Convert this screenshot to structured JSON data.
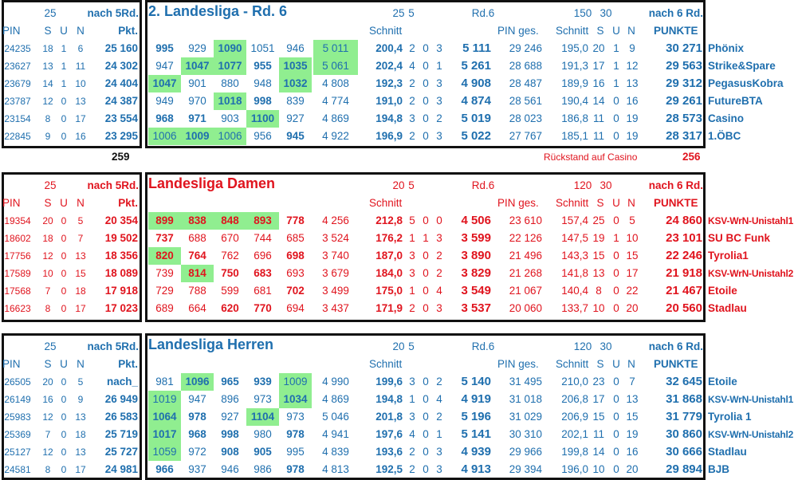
{
  "colors": {
    "blue": "#1f6fae",
    "red": "#e0141e",
    "highlight": "#90ee90",
    "border": "#111111"
  },
  "sections": [
    {
      "id": "landesliga2",
      "color": "blue",
      "title": "2. Landesliga - Rd. 6",
      "left_header": {
        "line1": [
          "25",
          "nach 5Rd."
        ],
        "cols": [
          "PIN",
          "S",
          "U",
          "N",
          "Pkt."
        ]
      },
      "main_header": {
        "line1": [
          "25",
          "5",
          "Rd.6",
          "150",
          "30",
          "nach 6 Rd."
        ],
        "line2": [
          "Schnitt",
          "PIN ges.",
          "Schnitt",
          "S",
          "U",
          "N",
          "PUNKTE"
        ]
      },
      "rows": [
        {
          "left": [
            "24235",
            "18",
            "1",
            "6",
            "25 160"
          ],
          "games": [
            "995",
            "929",
            "1090",
            "1051",
            "946"
          ],
          "bold": [
            true,
            false,
            true,
            false,
            false
          ],
          "hl": [
            false,
            false,
            true,
            false,
            false
          ],
          "sum": "5 011",
          "sum_hl": true,
          "avg": "200,4",
          "suv": [
            "2",
            "0",
            "3"
          ],
          "rd6": "5 111",
          "pin_ges": "29 246",
          "avg_ges": "195,0",
          "suv_ges": [
            "20",
            "1",
            "9"
          ],
          "punkte": "30 271",
          "team": "Phönix"
        },
        {
          "left": [
            "23627",
            "13",
            "1",
            "11",
            "24 302"
          ],
          "games": [
            "947",
            "1047",
            "1077",
            "955",
            "1035"
          ],
          "bold": [
            false,
            true,
            true,
            true,
            true
          ],
          "hl": [
            false,
            true,
            true,
            false,
            true
          ],
          "sum": "5 061",
          "sum_hl": true,
          "avg": "202,4",
          "suv": [
            "4",
            "0",
            "1"
          ],
          "rd6": "5 261",
          "pin_ges": "28 688",
          "avg_ges": "191,3",
          "suv_ges": [
            "17",
            "1",
            "12"
          ],
          "punkte": "29 563",
          "team": "Strike&Spare"
        },
        {
          "left": [
            "23679",
            "14",
            "1",
            "10",
            "24 404"
          ],
          "games": [
            "1047",
            "901",
            "880",
            "948",
            "1032"
          ],
          "bold": [
            true,
            false,
            false,
            false,
            true
          ],
          "hl": [
            true,
            false,
            false,
            false,
            true
          ],
          "sum": "4 808",
          "sum_hl": false,
          "avg": "192,3",
          "suv": [
            "2",
            "0",
            "3"
          ],
          "rd6": "4 908",
          "pin_ges": "28 487",
          "avg_ges": "189,9",
          "suv_ges": [
            "16",
            "1",
            "13"
          ],
          "punkte": "29 312",
          "team": "PegasusKobra"
        },
        {
          "left": [
            "23787",
            "12",
            "0",
            "13",
            "24 387"
          ],
          "games": [
            "949",
            "970",
            "1018",
            "998",
            "839"
          ],
          "bold": [
            false,
            false,
            true,
            true,
            false
          ],
          "hl": [
            false,
            false,
            true,
            false,
            false
          ],
          "sum": "4 774",
          "sum_hl": false,
          "avg": "191,0",
          "suv": [
            "2",
            "0",
            "3"
          ],
          "rd6": "4 874",
          "pin_ges": "28 561",
          "avg_ges": "190,4",
          "suv_ges": [
            "14",
            "0",
            "16"
          ],
          "punkte": "29 261",
          "team": "FutureBTA"
        },
        {
          "left": [
            "23154",
            "8",
            "0",
            "17",
            "23 554"
          ],
          "games": [
            "968",
            "971",
            "903",
            "1100",
            "927"
          ],
          "bold": [
            true,
            true,
            false,
            true,
            false
          ],
          "hl": [
            false,
            false,
            false,
            true,
            false
          ],
          "sum": "4 869",
          "sum_hl": false,
          "avg": "194,8",
          "suv": [
            "3",
            "0",
            "2"
          ],
          "rd6": "5 019",
          "pin_ges": "28 023",
          "avg_ges": "186,8",
          "suv_ges": [
            "11",
            "0",
            "19"
          ],
          "punkte": "28 573",
          "team": "Casino"
        },
        {
          "left": [
            "22845",
            "9",
            "0",
            "16",
            "23 295"
          ],
          "games": [
            "1006",
            "1009",
            "1006",
            "956",
            "945"
          ],
          "bold": [
            false,
            true,
            false,
            false,
            true
          ],
          "hl": [
            true,
            true,
            true,
            false,
            false
          ],
          "sum": "4 922",
          "sum_hl": false,
          "avg": "196,9",
          "suv": [
            "2",
            "0",
            "3"
          ],
          "rd6": "5 022",
          "pin_ges": "27 767",
          "avg_ges": "185,1",
          "suv_ges": [
            "11",
            "0",
            "19"
          ],
          "punkte": "28 317",
          "team": "1.ÖBC"
        }
      ],
      "footer_left": "259",
      "footer_note": "Rückstand auf Casino",
      "footer_value": "256"
    },
    {
      "id": "damen",
      "color": "red",
      "title": "Landesliga Damen",
      "left_header": {
        "line1": [
          "25",
          "nach 5Rd."
        ],
        "cols": [
          "PIN",
          "S",
          "U",
          "N",
          "Pkt."
        ]
      },
      "main_header": {
        "line1": [
          "20",
          "5",
          "Rd.6",
          "120",
          "30",
          "nach 6 Rd."
        ],
        "line2": [
          "Schnitt",
          "PIN ges.",
          "Schnitt",
          "S",
          "U",
          "N",
          "PUNKTE"
        ]
      },
      "rows": [
        {
          "left": [
            "19354",
            "20",
            "0",
            "5",
            "20 354"
          ],
          "games": [
            "899",
            "838",
            "848",
            "893",
            "778"
          ],
          "bold": [
            true,
            true,
            true,
            true,
            true
          ],
          "hl": [
            true,
            true,
            true,
            true,
            false
          ],
          "sum": "4 256",
          "sum_hl": false,
          "avg": "212,8",
          "suv": [
            "5",
            "0",
            "0"
          ],
          "rd6": "4 506",
          "pin_ges": "23 610",
          "avg_ges": "157,4",
          "suv_ges": [
            "25",
            "0",
            "5"
          ],
          "punkte": "24 860",
          "team": "KSV-WrN-Unistahl1"
        },
        {
          "left": [
            "18602",
            "18",
            "0",
            "7",
            "19 502"
          ],
          "games": [
            "737",
            "688",
            "670",
            "744",
            "685"
          ],
          "bold": [
            true,
            false,
            false,
            false,
            false
          ],
          "hl": [
            false,
            false,
            false,
            false,
            false
          ],
          "sum": "3 524",
          "sum_hl": false,
          "avg": "176,2",
          "suv": [
            "1",
            "1",
            "3"
          ],
          "rd6": "3 599",
          "pin_ges": "22 126",
          "avg_ges": "147,5",
          "suv_ges": [
            "19",
            "1",
            "10"
          ],
          "punkte": "23 101",
          "team": "SU BC Funk"
        },
        {
          "left": [
            "17756",
            "12",
            "0",
            "13",
            "18 356"
          ],
          "games": [
            "820",
            "764",
            "762",
            "696",
            "698"
          ],
          "bold": [
            true,
            true,
            false,
            false,
            true
          ],
          "hl": [
            true,
            false,
            false,
            false,
            false
          ],
          "sum": "3 740",
          "sum_hl": false,
          "avg": "187,0",
          "suv": [
            "3",
            "0",
            "2"
          ],
          "rd6": "3 890",
          "pin_ges": "21 496",
          "avg_ges": "143,3",
          "suv_ges": [
            "15",
            "0",
            "15"
          ],
          "punkte": "22 246",
          "team": "Tyrolia1"
        },
        {
          "left": [
            "17589",
            "10",
            "0",
            "15",
            "18 089"
          ],
          "games": [
            "739",
            "814",
            "750",
            "683",
            "693"
          ],
          "bold": [
            false,
            true,
            true,
            true,
            false
          ],
          "hl": [
            false,
            true,
            false,
            false,
            false
          ],
          "sum": "3 679",
          "sum_hl": false,
          "avg": "184,0",
          "suv": [
            "3",
            "0",
            "2"
          ],
          "rd6": "3 829",
          "pin_ges": "21 268",
          "avg_ges": "141,8",
          "suv_ges": [
            "13",
            "0",
            "17"
          ],
          "punkte": "21 918",
          "team": "KSV-WrN-Unistahl2"
        },
        {
          "left": [
            "17568",
            "7",
            "0",
            "18",
            "17 918"
          ],
          "games": [
            "729",
            "788",
            "599",
            "681",
            "702"
          ],
          "bold": [
            false,
            false,
            false,
            false,
            true
          ],
          "hl": [
            false,
            false,
            false,
            false,
            false
          ],
          "sum": "3 499",
          "sum_hl": false,
          "avg": "175,0",
          "suv": [
            "1",
            "0",
            "4"
          ],
          "rd6": "3 549",
          "pin_ges": "21 067",
          "avg_ges": "140,4",
          "suv_ges": [
            "8",
            "0",
            "22"
          ],
          "punkte": "21 467",
          "team": "Etoile"
        },
        {
          "left": [
            "16623",
            "8",
            "0",
            "17",
            "17 023"
          ],
          "games": [
            "689",
            "664",
            "620",
            "770",
            "694"
          ],
          "bold": [
            false,
            false,
            true,
            true,
            false
          ],
          "hl": [
            false,
            false,
            false,
            false,
            false
          ],
          "sum": "3 437",
          "sum_hl": false,
          "avg": "171,9",
          "suv": [
            "2",
            "0",
            "3"
          ],
          "rd6": "3 537",
          "pin_ges": "20 060",
          "avg_ges": "133,7",
          "suv_ges": [
            "10",
            "0",
            "20"
          ],
          "punkte": "20 560",
          "team": "Stadlau"
        }
      ]
    },
    {
      "id": "herren",
      "color": "blue",
      "title": "Landesliga  Herren",
      "left_header": {
        "line1": [
          "25",
          "nach 5Rd."
        ],
        "cols": [
          "PIN",
          "S",
          "U",
          "N",
          "Pkt."
        ]
      },
      "main_header": {
        "line1": [
          "20",
          "5",
          "Rd.6",
          "120",
          "30",
          "nach 6 Rd."
        ],
        "line2": [
          "Schnitt",
          "PIN ges.",
          "Schnitt",
          "S",
          "U",
          "N",
          "PUNKTE"
        ]
      },
      "rows": [
        {
          "left": [
            "26505",
            "20",
            "0",
            "5",
            "nach_"
          ],
          "games": [
            "981",
            "1096",
            "965",
            "939",
            "1009"
          ],
          "bold": [
            false,
            true,
            true,
            true,
            false
          ],
          "hl": [
            false,
            true,
            false,
            false,
            true
          ],
          "sum": "4 990",
          "sum_hl": false,
          "avg": "199,6",
          "suv": [
            "3",
            "0",
            "2"
          ],
          "rd6": "5 140",
          "pin_ges": "31 495",
          "avg_ges": "210,0",
          "suv_ges": [
            "23",
            "0",
            "7"
          ],
          "punkte": "32 645",
          "team": "Etoile"
        },
        {
          "left": [
            "26149",
            "16",
            "0",
            "9",
            "26 949"
          ],
          "games": [
            "1019",
            "947",
            "896",
            "973",
            "1034"
          ],
          "bold": [
            false,
            false,
            false,
            false,
            true
          ],
          "hl": [
            true,
            false,
            false,
            false,
            true
          ],
          "sum": "4 869",
          "sum_hl": false,
          "avg": "194,8",
          "suv": [
            "1",
            "0",
            "4"
          ],
          "rd6": "4 919",
          "pin_ges": "31 018",
          "avg_ges": "206,8",
          "suv_ges": [
            "17",
            "0",
            "13"
          ],
          "punkte": "31 868",
          "team": "KSV-WrN-Unistahl1"
        },
        {
          "left": [
            "25983",
            "12",
            "0",
            "13",
            "26 583"
          ],
          "games": [
            "1064",
            "978",
            "927",
            "1104",
            "973"
          ],
          "bold": [
            true,
            true,
            false,
            true,
            false
          ],
          "hl": [
            true,
            false,
            false,
            true,
            false
          ],
          "sum": "5 046",
          "sum_hl": false,
          "avg": "201,8",
          "suv": [
            "3",
            "0",
            "2"
          ],
          "rd6": "5 196",
          "pin_ges": "31 029",
          "avg_ges": "206,9",
          "suv_ges": [
            "15",
            "0",
            "15"
          ],
          "punkte": "31 779",
          "team": "Tyrolia 1"
        },
        {
          "left": [
            "25369",
            "7",
            "0",
            "18",
            "25 719"
          ],
          "games": [
            "1017",
            "968",
            "998",
            "980",
            "978"
          ],
          "bold": [
            true,
            true,
            true,
            false,
            true
          ],
          "hl": [
            true,
            false,
            false,
            false,
            false
          ],
          "sum": "4 941",
          "sum_hl": false,
          "avg": "197,6",
          "suv": [
            "4",
            "0",
            "1"
          ],
          "rd6": "5 141",
          "pin_ges": "30 310",
          "avg_ges": "202,1",
          "suv_ges": [
            "11",
            "0",
            "19"
          ],
          "punkte": "30 860",
          "team": "KSV-WrN-Unistahl2"
        },
        {
          "left": [
            "25127",
            "12",
            "0",
            "13",
            "25 727"
          ],
          "games": [
            "1059",
            "972",
            "908",
            "905",
            "995"
          ],
          "bold": [
            false,
            false,
            true,
            true,
            false
          ],
          "hl": [
            true,
            false,
            false,
            false,
            false
          ],
          "sum": "4 839",
          "sum_hl": false,
          "avg": "193,6",
          "suv": [
            "2",
            "0",
            "3"
          ],
          "rd6": "4 939",
          "pin_ges": "29 966",
          "avg_ges": "199,8",
          "suv_ges": [
            "14",
            "0",
            "16"
          ],
          "punkte": "30 666",
          "team": "Stadlau"
        },
        {
          "left": [
            "24581",
            "8",
            "0",
            "17",
            "24 981"
          ],
          "games": [
            "966",
            "937",
            "946",
            "986",
            "978"
          ],
          "bold": [
            true,
            false,
            false,
            false,
            true
          ],
          "hl": [
            false,
            false,
            false,
            false,
            false
          ],
          "sum": "4 813",
          "sum_hl": false,
          "avg": "192,5",
          "suv": [
            "2",
            "0",
            "3"
          ],
          "rd6": "4 913",
          "pin_ges": "29 394",
          "avg_ges": "196,0",
          "suv_ges": [
            "10",
            "0",
            "20"
          ],
          "punkte": "29 894",
          "team": "BJB"
        }
      ]
    }
  ]
}
